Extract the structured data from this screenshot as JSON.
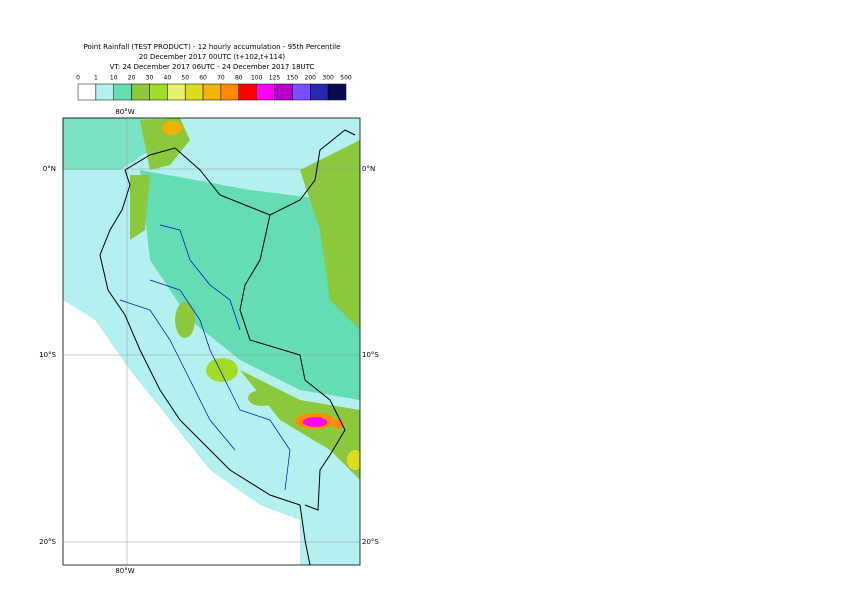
{
  "header": {
    "title": "Point Rainfall (TEST PRODUCT) - 12 hourly accumulation - 95th Percentile",
    "run": "20 December 2017 00UTC (t+102,t+114)",
    "validity": "VT: 24 December 2017 06UTC - 24 December 2017 18UTC"
  },
  "legend": {
    "labels": [
      0,
      1,
      10,
      20,
      30,
      40,
      50,
      60,
      70,
      80,
      100,
      125,
      150,
      200,
      300,
      500
    ],
    "colors": [
      "#ffffff",
      "#b4f0f0",
      "#64dcb4",
      "#8cc83c",
      "#a0dc28",
      "#e6f064",
      "#dcdc1e",
      "#f0b400",
      "#ff8c00",
      "#ff0000",
      "#ff00ff",
      "#b400c8",
      "#7850ff",
      "#2828b4",
      "#0a0a50"
    ]
  },
  "map": {
    "lon_label": "80°W",
    "lat_labels": [
      "0°N",
      "10°S",
      "20°S"
    ]
  }
}
